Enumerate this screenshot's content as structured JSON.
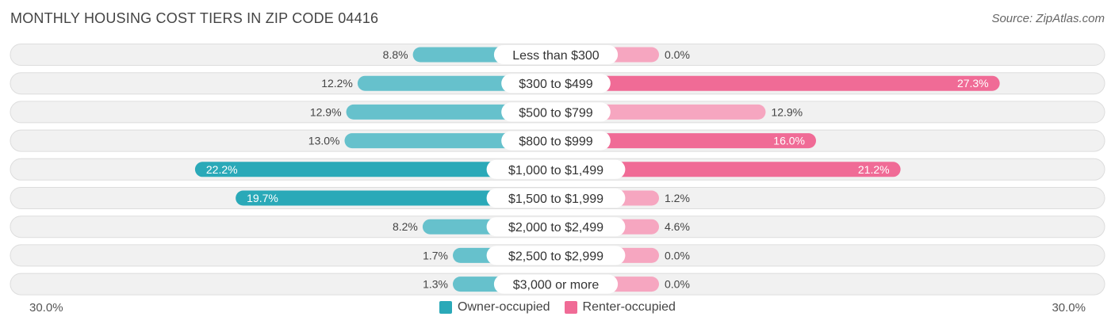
{
  "title": "MONTHLY HOUSING COST TIERS IN ZIP CODE 04416",
  "source": "Source: ZipAtlas.com",
  "chart_data": {
    "type": "bar",
    "orientation": "horizontal-diverging",
    "categories": [
      "Less than $300",
      "$300 to $499",
      "$500 to $799",
      "$800 to $999",
      "$1,000 to $1,499",
      "$1,500 to $1,999",
      "$2,000 to $2,499",
      "$2,500 to $2,999",
      "$3,000 or more"
    ],
    "series": [
      {
        "name": "Owner-occupied",
        "color": "#2aa9b8",
        "values": [
          8.8,
          12.2,
          12.9,
          13.0,
          22.2,
          19.7,
          8.2,
          1.7,
          1.3
        ],
        "labels": [
          "8.8%",
          "12.2%",
          "12.9%",
          "13.0%",
          "22.2%",
          "19.7%",
          "8.2%",
          "1.7%",
          "1.3%"
        ]
      },
      {
        "name": "Renter-occupied",
        "color": "#f06b96",
        "values": [
          0.0,
          27.3,
          12.9,
          16.0,
          21.2,
          1.2,
          4.6,
          0.0,
          0.0
        ],
        "labels": [
          "0.0%",
          "27.3%",
          "12.9%",
          "16.0%",
          "21.2%",
          "1.2%",
          "4.6%",
          "0.0%",
          "0.0%"
        ]
      }
    ],
    "xlim": [
      -30,
      30
    ],
    "axis_left_label": "30.0%",
    "axis_right_label": "30.0%",
    "legend_position": "bottom-center"
  }
}
